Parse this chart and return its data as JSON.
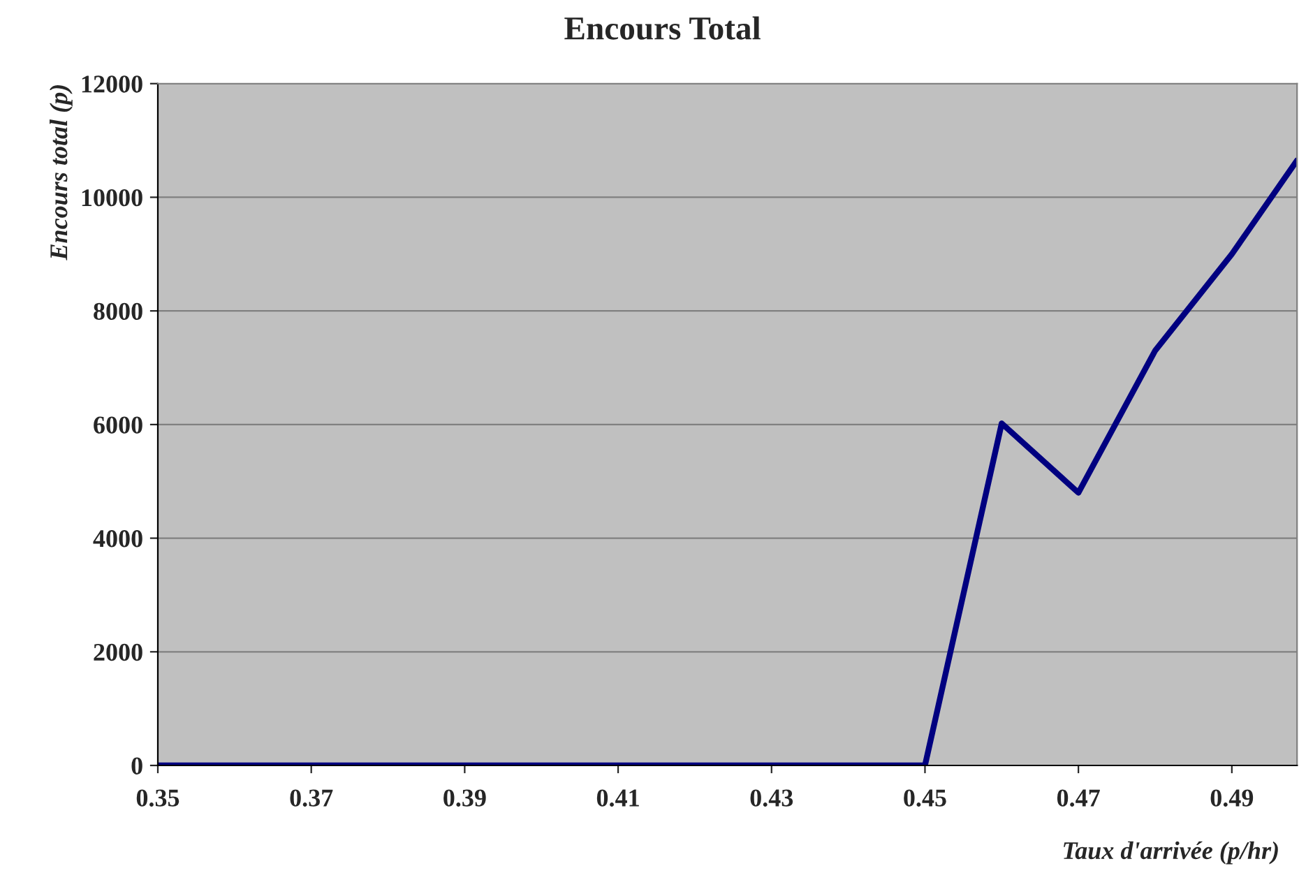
{
  "chart_data": {
    "type": "line",
    "title": "Encours Total",
    "xlabel": "Taux d'arrivée (p/hr)",
    "ylabel": "Encours total (p)",
    "x": [
      0.35,
      0.36,
      0.37,
      0.38,
      0.39,
      0.4,
      0.41,
      0.42,
      0.43,
      0.44,
      0.45,
      0.46,
      0.47,
      0.48,
      0.49,
      0.4985
    ],
    "series": [
      {
        "color": "#000080",
        "values": [
          0,
          0,
          0,
          0,
          0,
          0,
          0,
          0,
          0,
          0,
          0,
          6020,
          4800,
          7300,
          9000,
          10650
        ]
      }
    ],
    "xlim": [
      0.35,
      0.4985
    ],
    "xticks": [
      {
        "value": 0.35,
        "label": "0.35"
      },
      {
        "value": 0.37,
        "label": "0.37"
      },
      {
        "value": 0.39,
        "label": "0.39"
      },
      {
        "value": 0.41,
        "label": "0.41"
      },
      {
        "value": 0.43,
        "label": "0.43"
      },
      {
        "value": 0.45,
        "label": "0.45"
      },
      {
        "value": 0.47,
        "label": "0.47"
      },
      {
        "value": 0.49,
        "label": "0.49"
      }
    ],
    "ylim": [
      0,
      12000
    ],
    "yticks": [
      0,
      2000,
      4000,
      6000,
      8000,
      10000,
      12000
    ],
    "grid": "y",
    "marker": "none",
    "line_style": "solid"
  }
}
